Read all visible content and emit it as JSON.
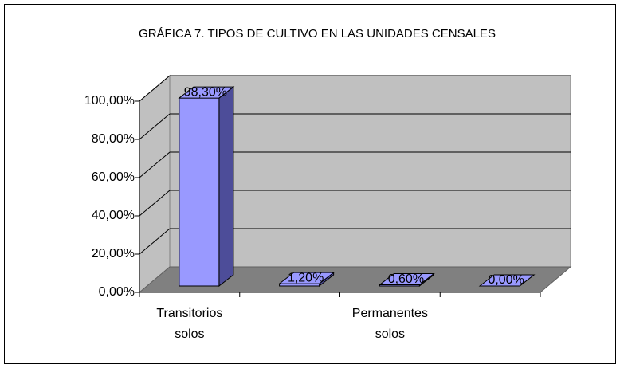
{
  "chart_data": {
    "type": "bar3d",
    "title": "GRÁFICA  7. TIPOS DE CULTIVO EN LAS UNIDADES CENSALES",
    "categories": [
      "Transitorios solos",
      null,
      "Permanentes solos",
      null
    ],
    "values": [
      98.3,
      1.2,
      0.6,
      0.0
    ],
    "value_labels": [
      "98,30%",
      "1,20%",
      "0,60%",
      "0,00%"
    ],
    "color": "#9999ff",
    "ylim": [
      0,
      100
    ],
    "yticks": [
      {
        "value": 0,
        "label": "0,00%"
      },
      {
        "value": 20,
        "label": "20,00%"
      },
      {
        "value": 40,
        "label": "40,00%"
      },
      {
        "value": 60,
        "label": "60,00%"
      },
      {
        "value": 80,
        "label": "80,00%"
      },
      {
        "value": 100,
        "label": "100,00%"
      }
    ],
    "grid": true
  }
}
